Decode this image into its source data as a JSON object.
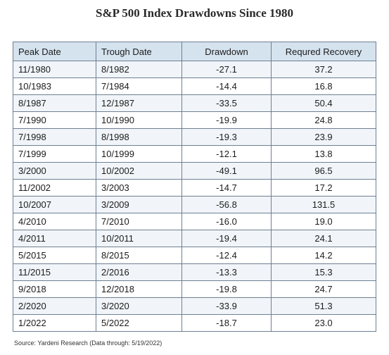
{
  "title": "S&P 500 Index Drawdowns Since 1980",
  "table": {
    "headers": [
      "Peak Date",
      "Trough Date",
      "Drawdown",
      "Requred Recovery"
    ],
    "rows": [
      [
        "11/1980",
        "8/1982",
        "-27.1",
        "37.2"
      ],
      [
        "10/1983",
        "7/1984",
        "-14.4",
        "16.8"
      ],
      [
        "8/1987",
        "12/1987",
        "-33.5",
        "50.4"
      ],
      [
        "7/1990",
        "10/1990",
        "-19.9",
        "24.8"
      ],
      [
        "7/1998",
        "8/1998",
        "-19.3",
        "23.9"
      ],
      [
        "7/1999",
        "10/1999",
        "-12.1",
        "13.8"
      ],
      [
        "3/2000",
        "10/2002",
        "-49.1",
        "96.5"
      ],
      [
        "11/2002",
        "3/2003",
        "-14.7",
        "17.2"
      ],
      [
        "10/2007",
        "3/2009",
        "-56.8",
        "131.5"
      ],
      [
        "4/2010",
        "7/2010",
        "-16.0",
        "19.0"
      ],
      [
        "4/2011",
        "10/2011",
        "-19.4",
        "24.1"
      ],
      [
        "5/2015",
        "8/2015",
        "-12.4",
        "14.2"
      ],
      [
        "11/2015",
        "2/2016",
        "-13.3",
        "15.3"
      ],
      [
        "9/2018",
        "12/2018",
        "-19.8",
        "24.7"
      ],
      [
        "2/2020",
        "3/2020",
        "-33.9",
        "51.3"
      ],
      [
        "1/2022",
        "5/2022",
        "-18.7",
        "23.0"
      ]
    ]
  },
  "source": "Source: Yardeni Research (Data through: 5/19/2022)"
}
